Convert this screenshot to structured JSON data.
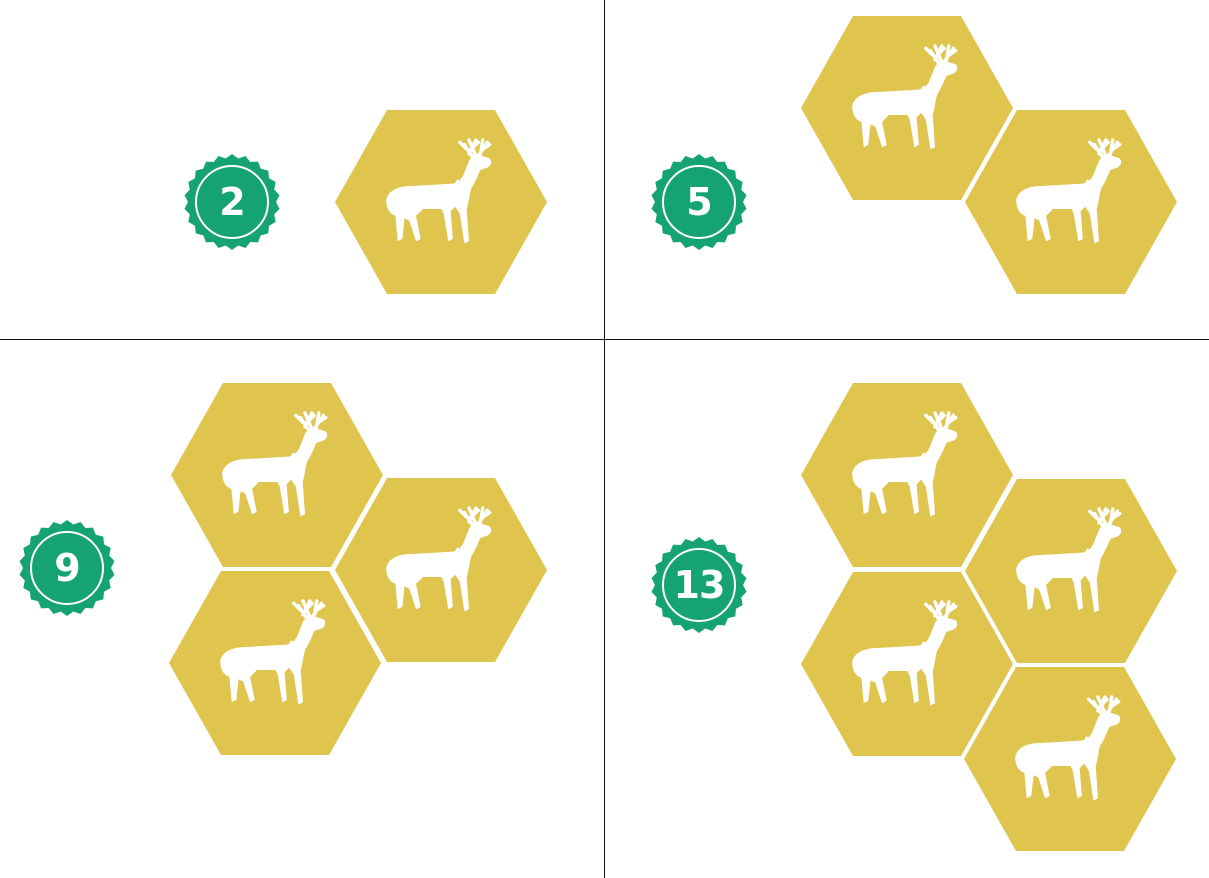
{
  "colors": {
    "tile": "#dfc44e",
    "badge": "#16a374",
    "badge_ring": "#ffffff",
    "animal": "#ffffff",
    "divider": "#111111"
  },
  "icons": {
    "tile_animal": "elk-icon",
    "badge_shape": "scalloped-seal-icon"
  },
  "panels": [
    {
      "id": "panel-1",
      "badge": {
        "value": "2"
      },
      "tile_count": 1
    },
    {
      "id": "panel-2",
      "badge": {
        "value": "5"
      },
      "tile_count": 2
    },
    {
      "id": "panel-3",
      "badge": {
        "value": "9"
      },
      "tile_count": 3
    },
    {
      "id": "panel-4",
      "badge": {
        "value": "13"
      },
      "tile_count": 4
    }
  ]
}
